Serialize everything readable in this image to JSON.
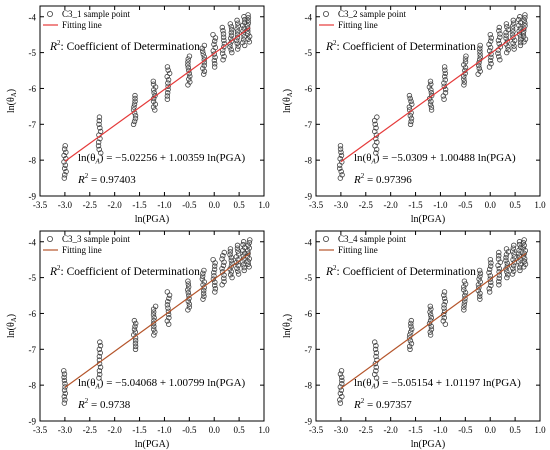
{
  "figure": {
    "r2_symbol": "R",
    "r2_superscript": "2",
    "r2_note_text": ": Coefficient of Determination",
    "fitting_legend_label": "Fitting line"
  },
  "chart_data": [
    {
      "type": "scatter",
      "series": [
        {
          "name": "C3_1 sample point",
          "marker": "open-circle",
          "color": "#404040",
          "label": "C3_1 sample point"
        },
        {
          "name": "Fitting line",
          "marker": "line",
          "color": "#e53a3a"
        }
      ],
      "x_levels": [
        -3.0,
        -2.3,
        -1.6,
        -1.2,
        -0.92,
        -0.51,
        -0.22,
        0.0,
        0.18,
        0.34,
        0.47,
        0.59,
        0.69
      ],
      "y_ranges": [
        [
          -8.5,
          -7.6
        ],
        [
          -7.8,
          -6.8
        ],
        [
          -7.0,
          -6.2
        ],
        [
          -6.6,
          -5.8
        ],
        [
          -6.3,
          -5.4
        ],
        [
          -5.9,
          -5.1
        ],
        [
          -5.6,
          -4.8
        ],
        [
          -5.4,
          -4.5
        ],
        [
          -5.2,
          -4.3
        ],
        [
          -5.0,
          -4.2
        ],
        [
          -4.9,
          -4.1
        ],
        [
          -4.8,
          -4.0
        ],
        [
          -4.7,
          -3.95
        ]
      ],
      "fit": {
        "intercept": -5.02256,
        "slope": 1.00359
      },
      "equation_lhs": "ln(θ",
      "equation_sub": "A",
      "equation_rhs": ") = −5.02256 + 1.00359 ln(PGA)",
      "r2_value_text": " = 0.97403",
      "xlabel": "ln(PGA)",
      "ylabel_main": "ln(θ",
      "ylabel_sub": "A",
      "ylabel_close": ")",
      "xlim": [
        -3.5,
        1.0
      ],
      "ylim": [
        -9,
        -3.7
      ],
      "x_ticks": [
        -3.5,
        -3.0,
        -2.5,
        -2.0,
        -1.5,
        -1.0,
        -0.5,
        0.0,
        0.5,
        1.0
      ],
      "x_tick_labels": [
        "-3.5",
        "-3.0",
        "-2.5",
        "-2.0",
        "-1.5",
        "-1.0",
        "-0.5",
        "0.0",
        "0.5",
        "1.0"
      ],
      "y_ticks": [
        -9,
        -8,
        -7,
        -6,
        -5,
        -4
      ],
      "y_tick_labels": [
        "-9",
        "-8",
        "-7",
        "-6",
        "-5",
        "-4"
      ]
    },
    {
      "type": "scatter",
      "series": [
        {
          "name": "C3_2 sample point",
          "marker": "open-circle",
          "color": "#404040",
          "label": "C3_2 sample point"
        },
        {
          "name": "Fitting line",
          "marker": "line",
          "color": "#e53a3a"
        }
      ],
      "x_levels": [
        -3.0,
        -2.3,
        -1.6,
        -1.2,
        -0.92,
        -0.51,
        -0.22,
        0.0,
        0.18,
        0.34,
        0.47,
        0.59,
        0.69
      ],
      "y_ranges": [
        [
          -8.5,
          -7.6
        ],
        [
          -7.8,
          -6.8
        ],
        [
          -7.0,
          -6.2
        ],
        [
          -6.6,
          -5.8
        ],
        [
          -6.3,
          -5.4
        ],
        [
          -5.9,
          -5.1
        ],
        [
          -5.6,
          -4.8
        ],
        [
          -5.4,
          -4.5
        ],
        [
          -5.2,
          -4.3
        ],
        [
          -5.0,
          -4.2
        ],
        [
          -4.9,
          -4.1
        ],
        [
          -4.8,
          -4.0
        ],
        [
          -4.7,
          -3.95
        ]
      ],
      "fit": {
        "intercept": -5.0309,
        "slope": 1.00488
      },
      "equation_lhs": "ln(θ",
      "equation_sub": "A",
      "equation_rhs": ") = −5.0309 + 1.00488 ln(PGA)",
      "r2_value_text": " = 0.97396",
      "xlabel": "ln(PGA)",
      "ylabel_main": "ln(θ",
      "ylabel_sub": "A",
      "ylabel_close": ")",
      "xlim": [
        -3.5,
        1.0
      ],
      "ylim": [
        -9,
        -3.7
      ],
      "x_ticks": [
        -3.5,
        -3.0,
        -2.5,
        -2.0,
        -1.5,
        -1.0,
        -0.5,
        0.0,
        0.5,
        1.0
      ],
      "x_tick_labels": [
        "-3.5",
        "-3.0",
        "-2.5",
        "-2.0",
        "-1.5",
        "-1.0",
        "-0.5",
        "0.0",
        "0.5",
        "1.0"
      ],
      "y_ticks": [
        -9,
        -8,
        -7,
        -6,
        -5,
        -4
      ],
      "y_tick_labels": [
        "-9",
        "-8",
        "-7",
        "-6",
        "-5",
        "-4"
      ]
    },
    {
      "type": "scatter",
      "series": [
        {
          "name": "C3_3 sample point",
          "marker": "open-circle",
          "color": "#404040",
          "label": "C3_3 sample point"
        },
        {
          "name": "Fitting line",
          "marker": "line",
          "color": "#b5552b"
        }
      ],
      "x_levels": [
        -3.0,
        -2.3,
        -1.6,
        -1.2,
        -0.92,
        -0.51,
        -0.22,
        0.0,
        0.18,
        0.34,
        0.47,
        0.59,
        0.69
      ],
      "y_ranges": [
        [
          -8.5,
          -7.6
        ],
        [
          -7.8,
          -6.8
        ],
        [
          -7.0,
          -6.2
        ],
        [
          -6.6,
          -5.8
        ],
        [
          -6.3,
          -5.4
        ],
        [
          -5.9,
          -5.1
        ],
        [
          -5.6,
          -4.8
        ],
        [
          -5.4,
          -4.5
        ],
        [
          -5.2,
          -4.3
        ],
        [
          -5.0,
          -4.2
        ],
        [
          -4.9,
          -4.1
        ],
        [
          -4.8,
          -4.0
        ],
        [
          -4.7,
          -3.95
        ]
      ],
      "fit": {
        "intercept": -5.04068,
        "slope": 1.00799
      },
      "equation_lhs": "ln(θ",
      "equation_sub": "A",
      "equation_rhs": ") = −5.04068 + 1.00799 ln(PGA)",
      "r2_value_text": " = 0.9738",
      "xlabel": "ln(PGA)",
      "ylabel_main": "ln(θ",
      "ylabel_sub": "A",
      "ylabel_close": ")",
      "xlim": [
        -3.5,
        1.0
      ],
      "ylim": [
        -9,
        -3.7
      ],
      "x_ticks": [
        -3.5,
        -3.0,
        -2.5,
        -2.0,
        -1.5,
        -1.0,
        -0.5,
        0.0,
        0.5,
        1.0
      ],
      "x_tick_labels": [
        "-3.5",
        "-3.0",
        "-2.5",
        "-2.0",
        "-1.5",
        "-1.0",
        "-0.5",
        "0.0",
        "0.5",
        "1.0"
      ],
      "y_ticks": [
        -9,
        -8,
        -7,
        -6,
        -5,
        -4
      ],
      "y_tick_labels": [
        "-9",
        "-8",
        "-7",
        "-6",
        "-5",
        "-4"
      ]
    },
    {
      "type": "scatter",
      "series": [
        {
          "name": "C3_4 sample point",
          "marker": "open-circle",
          "color": "#404040",
          "label": "C3_4 sample point"
        },
        {
          "name": "Fitting line",
          "marker": "line",
          "color": "#b5552b"
        }
      ],
      "x_levels": [
        -3.0,
        -2.3,
        -1.6,
        -1.2,
        -0.92,
        -0.51,
        -0.22,
        0.0,
        0.18,
        0.34,
        0.47,
        0.59,
        0.69
      ],
      "y_ranges": [
        [
          -8.5,
          -7.6
        ],
        [
          -7.8,
          -6.8
        ],
        [
          -7.0,
          -6.2
        ],
        [
          -6.6,
          -5.8
        ],
        [
          -6.3,
          -5.4
        ],
        [
          -5.9,
          -5.1
        ],
        [
          -5.6,
          -4.8
        ],
        [
          -5.4,
          -4.5
        ],
        [
          -5.2,
          -4.3
        ],
        [
          -5.0,
          -4.2
        ],
        [
          -4.9,
          -4.1
        ],
        [
          -4.8,
          -4.0
        ],
        [
          -4.7,
          -3.95
        ]
      ],
      "fit": {
        "intercept": -5.05154,
        "slope": 1.01197
      },
      "equation_lhs": "ln(θ",
      "equation_sub": "A",
      "equation_rhs": ") = −5.05154 + 1.01197 ln(PGA)",
      "r2_value_text": " = 0.97357",
      "xlabel": "ln(PGA)",
      "ylabel_main": "ln(θ",
      "ylabel_sub": "A",
      "ylabel_close": ")",
      "xlim": [
        -3.5,
        1.0
      ],
      "ylim": [
        -9,
        -3.7
      ],
      "x_ticks": [
        -3.5,
        -3.0,
        -2.5,
        -2.0,
        -1.5,
        -1.0,
        -0.5,
        0.0,
        0.5,
        1.0
      ],
      "x_tick_labels": [
        "-3.5",
        "-3.0",
        "-2.5",
        "-2.0",
        "-1.5",
        "-1.0",
        "-0.5",
        "0.0",
        "0.5",
        "1.0"
      ],
      "y_ticks": [
        -9,
        -8,
        -7,
        -6,
        -5,
        -4
      ],
      "y_tick_labels": [
        "-9",
        "-8",
        "-7",
        "-6",
        "-5",
        "-4"
      ]
    }
  ]
}
